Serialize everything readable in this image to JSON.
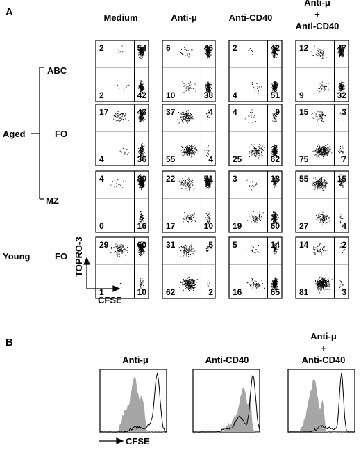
{
  "colors": {
    "ink": "#000000",
    "fill_grey": "#a6a6a6",
    "background": "#ffffff"
  },
  "panel_a": {
    "label": "A",
    "column_headers": [
      {
        "lines": [
          "Medium"
        ]
      },
      {
        "lines": [
          "Anti-μ"
        ]
      },
      {
        "lines": [
          "Anti-CD40"
        ]
      },
      {
        "lines": [
          "Anti-μ",
          "+",
          "Anti-CD40"
        ]
      }
    ],
    "group_label": "Aged",
    "row_labels": [
      "ABC",
      "FO",
      "MZ",
      "FO"
    ],
    "young_label": "Young",
    "y_axis_label": "TOPRO-3",
    "x_axis_label": "CFSE"
  },
  "panel_b": {
    "label": "B",
    "column_headers": [
      {
        "lines": [
          "Anti-μ"
        ]
      },
      {
        "lines": [
          "Anti-CD40"
        ]
      },
      {
        "lines": [
          "Anti-μ",
          "+",
          "Anti-CD40"
        ]
      }
    ],
    "x_axis_label": "CFSE"
  },
  "chart_data": [
    {
      "type": "scatter",
      "description": "Flow cytometry dot plots, quadrant percentages",
      "rows": [
        "Aged ABC",
        "Aged FO",
        "Aged MZ",
        "Young FO"
      ],
      "columns": [
        "Medium",
        "Anti-μ",
        "Anti-CD40",
        "Anti-μ + Anti-CD40"
      ],
      "xlabel": "CFSE",
      "ylabel": "TOPRO-3",
      "quadrants": [
        [
          {
            "ul": "2",
            "ur": "54",
            "ll": "2",
            "lr": "42"
          },
          {
            "ul": "6",
            "ur": "46",
            "ll": "10",
            "lr": "38"
          },
          {
            "ul": "2",
            "ur": "42",
            "ll": "4",
            "lr": "51"
          },
          {
            "ul": "12",
            "ur": "47",
            "ll": "9",
            "lr": "32"
          }
        ],
        [
          {
            "ul": "17",
            "ur": "43",
            "ll": "4",
            "lr": "36"
          },
          {
            "ul": "37",
            "ur": "4",
            "ll": "55",
            "lr": "4"
          },
          {
            "ul": "4",
            "ur": "9",
            "ll": "25",
            "lr": "62"
          },
          {
            "ul": "15",
            "ur": "3",
            "ll": "75",
            "lr": "7"
          }
        ],
        [
          {
            "ul": "4",
            "ur": "80",
            "ll": "0",
            "lr": "16"
          },
          {
            "ul": "22",
            "ur": "51",
            "ll": "17",
            "lr": "10"
          },
          {
            "ul": "3",
            "ur": "18",
            "ll": "19",
            "lr": "60"
          },
          {
            "ul": "55",
            "ur": "15",
            "ll": "27",
            "lr": "4"
          }
        ],
        [
          {
            "ul": "29",
            "ur": "60",
            "ll": "1",
            "lr": "10"
          },
          {
            "ul": "31",
            "ur": "5",
            "ll": "62",
            "lr": "2"
          },
          {
            "ul": "5",
            "ur": "14",
            "ll": "16",
            "lr": "65"
          },
          {
            "ul": "14",
            "ur": "2",
            "ll": "81",
            "lr": "3"
          }
        ]
      ]
    },
    {
      "type": "area",
      "description": "CFSE dilution histograms: filled grey overlaid with open black outline",
      "xlabel": "CFSE",
      "panels": [
        "Anti-μ",
        "Anti-CD40",
        "Anti-μ + Anti-CD40"
      ]
    }
  ]
}
